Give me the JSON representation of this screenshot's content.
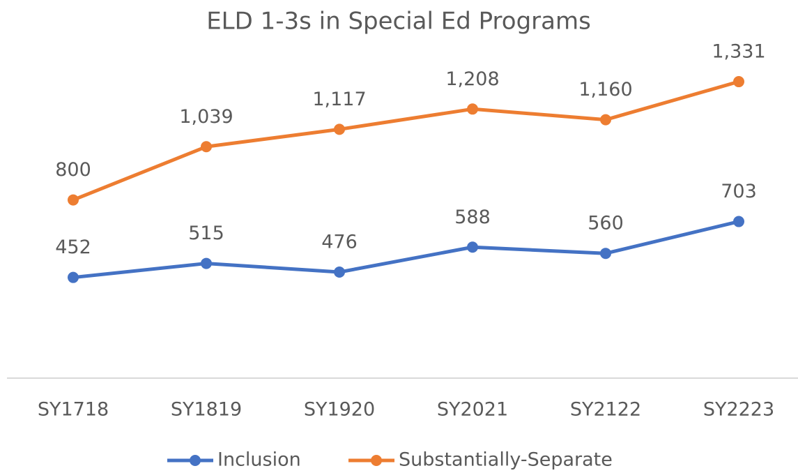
{
  "chart_data": {
    "type": "line",
    "title": "ELD 1-3s in Special Ed Programs",
    "categories": [
      "SY1718",
      "SY1819",
      "SY1920",
      "SY2021",
      "SY2122",
      "SY2223"
    ],
    "series": [
      {
        "name": "Inclusion",
        "color": "#4472c4",
        "values": [
          452,
          515,
          476,
          588,
          560,
          703
        ]
      },
      {
        "name": "Substantially-Separate",
        "color": "#ed7d31",
        "values": [
          800,
          1039,
          1117,
          1208,
          1160,
          1331
        ],
        "value_labels": [
          "800",
          "1,039",
          "1,117",
          "1,208",
          "1,160",
          "1,331"
        ]
      }
    ],
    "ylim": [
      0,
      1400
    ],
    "legend": "bottom"
  }
}
